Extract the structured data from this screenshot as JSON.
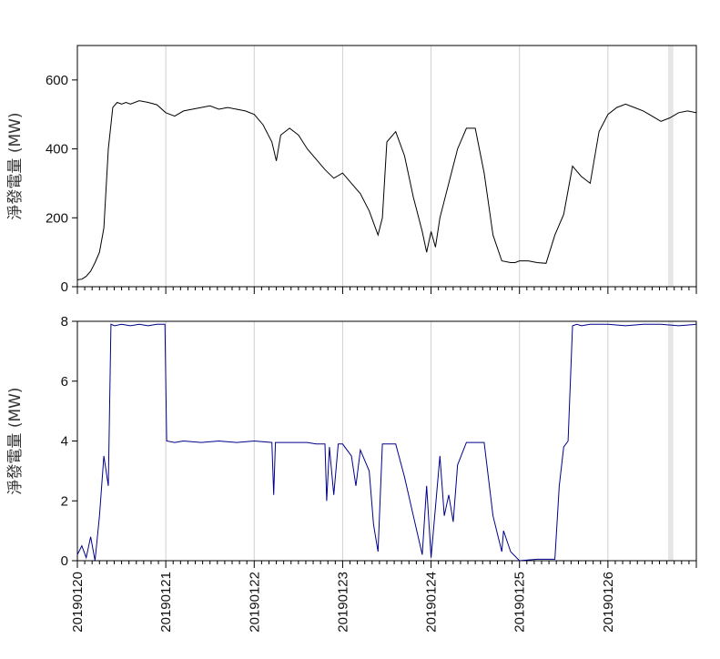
{
  "chart_data": [
    {
      "type": "line",
      "xlabel": "",
      "ylabel": "淨發電量 (MW)",
      "ylim": [
        0,
        700
      ],
      "yticks": [
        0,
        200,
        400,
        600
      ],
      "yticklabels": [
        "0",
        "200",
        "400",
        "600"
      ],
      "line_color": "#000000",
      "grid": "vertical lines at day boundaries",
      "x": [
        0,
        0.05,
        0.1,
        0.15,
        0.2,
        0.25,
        0.3,
        0.35,
        0.4,
        0.45,
        0.5,
        0.55,
        0.6,
        0.7,
        0.8,
        0.9,
        1.0,
        1.05,
        1.1,
        1.2,
        1.3,
        1.4,
        1.5,
        1.6,
        1.7,
        1.8,
        1.9,
        2.0,
        2.1,
        2.2,
        2.25,
        2.3,
        2.4,
        2.5,
        2.6,
        2.7,
        2.8,
        2.9,
        3.0,
        3.1,
        3.2,
        3.3,
        3.4,
        3.45,
        3.5,
        3.6,
        3.7,
        3.8,
        3.9,
        3.95,
        4.0,
        4.05,
        4.1,
        4.2,
        4.3,
        4.4,
        4.5,
        4.6,
        4.7,
        4.8,
        4.9,
        4.95,
        5.0,
        5.1,
        5.2,
        5.3,
        5.4,
        5.5,
        5.6,
        5.7,
        5.8,
        5.9,
        6.0,
        6.1,
        6.2,
        6.3,
        6.4,
        6.5,
        6.6,
        6.7,
        6.8,
        6.9,
        7.0
      ],
      "y": [
        20,
        22,
        30,
        45,
        70,
        100,
        170,
        400,
        520,
        535,
        530,
        535,
        530,
        540,
        535,
        528,
        505,
        500,
        495,
        510,
        515,
        520,
        525,
        515,
        520,
        515,
        510,
        500,
        470,
        420,
        365,
        440,
        460,
        440,
        400,
        370,
        340,
        315,
        330,
        300,
        270,
        220,
        150,
        200,
        420,
        450,
        380,
        260,
        160,
        100,
        160,
        115,
        200,
        300,
        400,
        460,
        460,
        330,
        150,
        75,
        70,
        70,
        75,
        75,
        70,
        68,
        150,
        210,
        350,
        320,
        300,
        450,
        500,
        520,
        530,
        520,
        510,
        495,
        480,
        490,
        505,
        510,
        505
      ],
      "xticks": [
        0,
        1,
        2,
        3,
        4,
        5,
        6
      ],
      "xticklabels": [
        "20190120",
        "20190121",
        "20190122",
        "20190123",
        "20190124",
        "20190125",
        "20190126"
      ],
      "xlim": [
        0,
        7
      ],
      "shaded_bands": [
        [
          6.68,
          6.74
        ]
      ]
    },
    {
      "type": "line",
      "xlabel": "",
      "ylabel": "淨發電量 (MW)",
      "ylim": [
        0,
        8
      ],
      "yticks": [
        0,
        2,
        4,
        6,
        8
      ],
      "yticklabels": [
        "0",
        "2",
        "4",
        "6",
        "8"
      ],
      "line_color": "#00008B",
      "grid": "vertical lines at day boundaries",
      "x": [
        0,
        0.05,
        0.1,
        0.15,
        0.2,
        0.25,
        0.3,
        0.35,
        0.38,
        0.42,
        0.5,
        0.6,
        0.7,
        0.8,
        0.9,
        0.99,
        1.01,
        1.1,
        1.2,
        1.4,
        1.6,
        1.8,
        2.0,
        2.2,
        2.22,
        2.24,
        2.4,
        2.6,
        2.7,
        2.8,
        2.82,
        2.85,
        2.9,
        2.95,
        3.0,
        3.1,
        3.15,
        3.2,
        3.3,
        3.35,
        3.4,
        3.45,
        3.5,
        3.6,
        3.7,
        3.8,
        3.9,
        3.95,
        4.0,
        4.1,
        4.15,
        4.2,
        4.25,
        4.3,
        4.4,
        4.5,
        4.6,
        4.7,
        4.8,
        4.82,
        4.9,
        5.0,
        5.2,
        5.4,
        5.45,
        5.5,
        5.55,
        5.6,
        5.65,
        5.7,
        5.8,
        6.0,
        6.2,
        6.4,
        6.6,
        6.8,
        7.0
      ],
      "y": [
        0.2,
        0.5,
        0.1,
        0.8,
        0.0,
        1.5,
        3.5,
        2.5,
        7.9,
        7.85,
        7.9,
        7.85,
        7.9,
        7.85,
        7.9,
        7.9,
        4.0,
        3.95,
        4.0,
        3.95,
        4.0,
        3.95,
        4.0,
        3.95,
        2.2,
        3.95,
        3.95,
        3.95,
        3.9,
        3.9,
        2.0,
        3.8,
        2.2,
        3.9,
        3.9,
        3.5,
        2.5,
        3.7,
        3.0,
        1.2,
        0.3,
        3.9,
        3.9,
        3.9,
        2.8,
        1.5,
        0.2,
        2.5,
        0.1,
        3.5,
        1.5,
        2.2,
        1.3,
        3.2,
        3.95,
        3.95,
        3.95,
        1.5,
        0.3,
        1.0,
        0.3,
        0.0,
        0.05,
        0.05,
        2.5,
        3.8,
        4.0,
        7.85,
        7.9,
        7.85,
        7.9,
        7.9,
        7.85,
        7.9,
        7.9,
        7.85,
        7.9
      ],
      "xticks": [
        0,
        1,
        2,
        3,
        4,
        5,
        6
      ],
      "xticklabels": [
        "20190120",
        "20190121",
        "20190122",
        "20190123",
        "20190124",
        "20190125",
        "20190126"
      ],
      "xlim": [
        0,
        7
      ],
      "shaded_bands": [
        [
          6.68,
          6.74
        ]
      ]
    }
  ]
}
